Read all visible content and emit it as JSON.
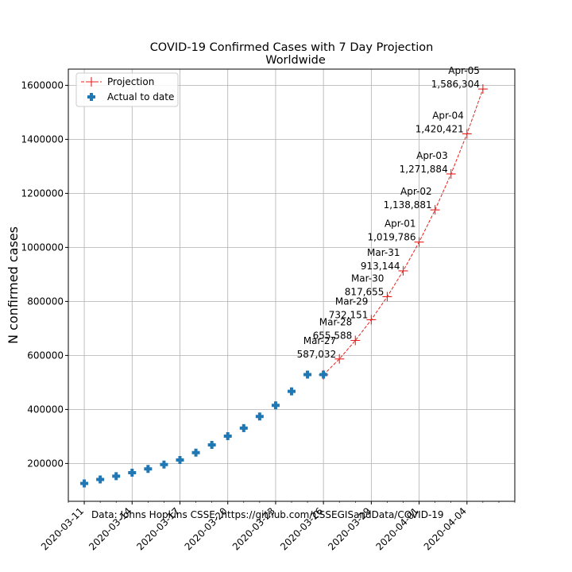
{
  "chart_data": {
    "type": "line",
    "title": "COVID-19 Confirmed Cases with 7 Day Projection",
    "subtitle": "Worldwide",
    "xlabel": "",
    "ylabel": "N confirmed cases",
    "source_note": "Data: Johns Hopkins CSSE, https://github.com/CSSEGISandData/COVID-19",
    "xlim": [
      "2020-03-10",
      "2020-04-07"
    ],
    "ylim": [
      60000,
      1660000
    ],
    "x_ticks": [
      "2020-03-11",
      "2020-03-14",
      "2020-03-17",
      "2020-03-20",
      "2020-03-23",
      "2020-03-26",
      "2020-03-29",
      "2020-04-01",
      "2020-04-04"
    ],
    "y_ticks": [
      200000,
      400000,
      600000,
      800000,
      1000000,
      1200000,
      1400000,
      1600000
    ],
    "grid": true,
    "legend_position": "top-left",
    "series": [
      {
        "name": "Projection",
        "style": "dashed-line-plus-markers",
        "color": "#e8211c",
        "x": [
          "2020-03-26",
          "2020-03-27",
          "2020-03-28",
          "2020-03-29",
          "2020-03-30",
          "2020-03-31",
          "2020-04-01",
          "2020-04-02",
          "2020-04-03",
          "2020-04-04",
          "2020-04-05"
        ],
        "values": [
          528000,
          587032,
          655588,
          732151,
          817655,
          913144,
          1019786,
          1138881,
          1271884,
          1420421,
          1586304
        ]
      },
      {
        "name": "Actual to date",
        "style": "filled-plus-markers",
        "color": "#1f77b4",
        "x": [
          "2020-03-11",
          "2020-03-12",
          "2020-03-13",
          "2020-03-14",
          "2020-03-15",
          "2020-03-16",
          "2020-03-17",
          "2020-03-18",
          "2020-03-19",
          "2020-03-20",
          "2020-03-21",
          "2020-03-22",
          "2020-03-23",
          "2020-03-24",
          "2020-03-25",
          "2020-03-26"
        ],
        "values": [
          126000,
          141000,
          153000,
          166000,
          180000,
          196000,
          213000,
          240000,
          269000,
          301000,
          331000,
          374000,
          415000,
          467000,
          529000,
          529000
        ]
      }
    ],
    "annotations": [
      {
        "x": "2020-03-27",
        "y": 587032,
        "date": "Mar-27",
        "value": "587,032"
      },
      {
        "x": "2020-03-28",
        "y": 655588,
        "date": "Mar-28",
        "value": "655,588"
      },
      {
        "x": "2020-03-29",
        "y": 732151,
        "date": "Mar-29",
        "value": "732,151"
      },
      {
        "x": "2020-03-30",
        "y": 817655,
        "date": "Mar-30",
        "value": "817,655"
      },
      {
        "x": "2020-03-31",
        "y": 913144,
        "date": "Mar-31",
        "value": "913,144"
      },
      {
        "x": "2020-04-01",
        "y": 1019786,
        "date": "Apr-01",
        "value": "1,019,786"
      },
      {
        "x": "2020-04-02",
        "y": 1138881,
        "date": "Apr-02",
        "value": "1,138,881"
      },
      {
        "x": "2020-04-03",
        "y": 1271884,
        "date": "Apr-03",
        "value": "1,271,884"
      },
      {
        "x": "2020-04-04",
        "y": 1420421,
        "date": "Apr-04",
        "value": "1,420,421"
      },
      {
        "x": "2020-04-05",
        "y": 1586304,
        "date": "Apr-05",
        "value": "1,586,304"
      }
    ]
  }
}
